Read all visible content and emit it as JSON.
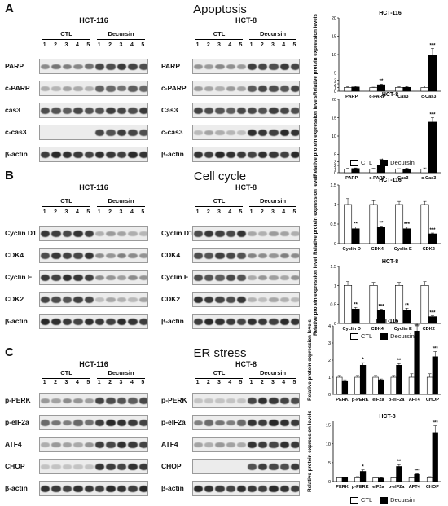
{
  "sections": [
    {
      "letter": "A",
      "title": "Apoptosis",
      "cells": [
        {
          "name": "HCT-116",
          "group_ctl": "CTL",
          "group_tx": "Decursin",
          "rows": [
            {
              "label": "PARP",
              "ctl": 0.45,
              "tx": 0.75
            },
            {
              "label": "c-PARP",
              "ctl": 0.2,
              "tx": 0.55
            },
            {
              "label": "cas3",
              "ctl": 0.7,
              "tx": 0.75
            },
            {
              "label": "c-cas3",
              "ctl": 0.0,
              "tx": 0.75
            },
            {
              "label": "β-actin",
              "ctl": 0.85,
              "tx": 0.85
            }
          ]
        },
        {
          "name": "HCT-8",
          "group_ctl": "CTL",
          "group_tx": "Decursin",
          "rows": [
            {
              "label": "PARP",
              "ctl": 0.35,
              "tx": 0.75
            },
            {
              "label": "c-PARP",
              "ctl": 0.25,
              "tx": 0.7
            },
            {
              "label": "Cas3",
              "ctl": 0.7,
              "tx": 0.75
            },
            {
              "label": "c-cas3",
              "ctl": 0.15,
              "tx": 0.85
            },
            {
              "label": "β-actin",
              "ctl": 0.85,
              "tx": 0.85
            }
          ]
        }
      ]
    },
    {
      "letter": "B",
      "title": "Cell cycle",
      "cells": [
        {
          "name": "HCT-116",
          "group_ctl": "CTL",
          "group_tx": "Decursin",
          "rows": [
            {
              "label": "Cyclin D1",
              "ctl": 0.8,
              "tx": 0.2
            },
            {
              "label": "CDK4",
              "ctl": 0.8,
              "tx": 0.35
            },
            {
              "label": "Cyclin E",
              "ctl": 0.85,
              "tx": 0.3
            },
            {
              "label": "CDK2",
              "ctl": 0.75,
              "tx": 0.15
            },
            {
              "label": "β-actin",
              "ctl": 0.85,
              "tx": 0.85
            }
          ]
        },
        {
          "name": "HCT-8",
          "group_ctl": "CTL",
          "group_tx": "Decursin",
          "rows": [
            {
              "label": "Cyclin D1",
              "ctl": 0.8,
              "tx": 0.2
            },
            {
              "label": "CDK4",
              "ctl": 0.75,
              "tx": 0.35
            },
            {
              "label": "Cyclin E",
              "ctl": 0.7,
              "tx": 0.25
            },
            {
              "label": "CDK2",
              "ctl": 0.8,
              "tx": 0.15
            },
            {
              "label": "β-actin",
              "ctl": 0.85,
              "tx": 0.85
            }
          ]
        }
      ]
    },
    {
      "letter": "C",
      "title": "ER stress",
      "cells": [
        {
          "name": "HCT-116",
          "group_ctl": "CTL",
          "group_tx": "Decursin",
          "rows": [
            {
              "label": "p-PERK",
              "ctl": 0.3,
              "tx": 0.7
            },
            {
              "label": "p-eIF2a",
              "ctl": 0.5,
              "tx": 0.85
            },
            {
              "label": "ATF4",
              "ctl": 0.25,
              "tx": 0.8
            },
            {
              "label": "CHOP",
              "ctl": 0.05,
              "tx": 0.8
            },
            {
              "label": "β-actin",
              "ctl": 0.85,
              "tx": 0.85
            }
          ]
        },
        {
          "name": "HCT-8",
          "group_ctl": "CTL",
          "group_tx": "Decursin",
          "rows": [
            {
              "label": "p-PERK",
              "ctl": 0.05,
              "tx": 0.8
            },
            {
              "label": "p-eIF2a",
              "ctl": 0.5,
              "tx": 0.85
            },
            {
              "label": "ATF4",
              "ctl": 0.25,
              "tx": 0.8
            },
            {
              "label": "CHOP",
              "ctl": 0.0,
              "tx": 0.75
            },
            {
              "label": "β-actin",
              "ctl": 0.85,
              "tx": 0.85
            }
          ]
        }
      ]
    }
  ],
  "lanes": [
    "1",
    "2",
    "3",
    "4",
    "5",
    "1",
    "2",
    "3",
    "4",
    "5"
  ],
  "legend": {
    "ctl": "CTL",
    "tx": "Decursin"
  },
  "colors": {
    "ctl_bar": "#ffffff",
    "tx_bar": "#000000",
    "band": "#1a1a1a",
    "blot_bg": "#ececec"
  },
  "chart_data": [
    {
      "type": "bar",
      "title": "HCT-116",
      "ylabel": "Relative protein expression levels",
      "categories": [
        "PARP",
        "c-PARP",
        "Cas3",
        "c-Cas3"
      ],
      "series": [
        {
          "name": "CTL",
          "values": [
            1.0,
            1.0,
            1.0,
            1.0
          ]
        },
        {
          "name": "Decursin",
          "values": [
            1.15,
            1.75,
            1.05,
            9.8
          ]
        }
      ],
      "errors": [
        [
          0.2,
          0.1,
          0.3,
          0.5
        ],
        [
          0.2,
          0.2,
          0.2,
          1.9
        ]
      ],
      "sig": [
        "",
        "**",
        "",
        "***"
      ],
      "yticks": [
        0,
        1,
        2,
        3,
        5,
        10,
        15,
        20
      ],
      "ylim": [
        0,
        20
      ]
    },
    {
      "type": "bar",
      "title": "HCT-8",
      "ylabel": "Relative protein expression levels",
      "categories": [
        "PARP",
        "c-PARP",
        "Cas3",
        "c-Cas3"
      ],
      "series": [
        {
          "name": "CTL",
          "values": [
            1.0,
            1.0,
            1.0,
            1.0
          ]
        },
        {
          "name": "Decursin",
          "values": [
            1.15,
            2.1,
            1.05,
            13.8
          ]
        }
      ],
      "errors": [
        [
          0.2,
          0.2,
          0.1,
          0.3
        ],
        [
          0.15,
          0.4,
          0.2,
          1.2
        ]
      ],
      "sig": [
        "",
        "**",
        "",
        "***"
      ],
      "yticks": [
        0,
        1,
        2,
        3,
        5,
        10,
        15,
        20
      ],
      "ylim": [
        0,
        20
      ]
    },
    {
      "type": "bar",
      "title": "HCT-116",
      "ylabel": "Relative protein expression levels",
      "categories": [
        "Cyclin D",
        "CDK4",
        "Cyclin E",
        "CDK2"
      ],
      "series": [
        {
          "name": "CTL",
          "values": [
            1.0,
            1.0,
            1.0,
            1.0
          ]
        },
        {
          "name": "Decursin",
          "values": [
            0.38,
            0.42,
            0.38,
            0.25
          ]
        }
      ],
      "errors": [
        [
          0.15,
          0.1,
          0.08,
          0.08
        ],
        [
          0.05,
          0.03,
          0.04,
          0.02
        ]
      ],
      "sig": [
        "**",
        "**",
        "***",
        "***"
      ],
      "yticks": [
        0.0,
        0.5,
        1.0,
        1.5
      ],
      "ylim": [
        0,
        1.5
      ]
    },
    {
      "type": "bar",
      "title": "HCT-8",
      "ylabel": "Relative protein expression levels",
      "categories": [
        "Cyclin D",
        "CDK4",
        "Cyclin E",
        "CDK2"
      ],
      "series": [
        {
          "name": "CTL",
          "values": [
            1.0,
            1.0,
            1.0,
            1.0
          ]
        },
        {
          "name": "Decursin",
          "values": [
            0.38,
            0.35,
            0.35,
            0.18
          ]
        }
      ],
      "errors": [
        [
          0.1,
          0.08,
          0.08,
          0.1
        ],
        [
          0.04,
          0.03,
          0.05,
          0.02
        ]
      ],
      "sig": [
        "**",
        "***",
        "**",
        "***"
      ],
      "yticks": [
        0.0,
        0.5,
        1.0,
        1.5
      ],
      "ylim": [
        0,
        1.5
      ]
    },
    {
      "type": "bar",
      "title": "HCT-116",
      "ylabel": "Relative protein expression levels",
      "categories": [
        "PERK",
        "p-PERK",
        "eIF2a",
        "p-eIF2a",
        "AFT4",
        "CHOP"
      ],
      "series": [
        {
          "name": "CTL",
          "values": [
            1.0,
            1.0,
            1.0,
            1.0,
            1.0,
            1.0
          ]
        },
        {
          "name": "Decursin",
          "values": [
            0.8,
            1.7,
            0.85,
            1.7,
            3.7,
            2.2
          ]
        }
      ],
      "errors": [
        [
          0.1,
          0.1,
          0.1,
          0.1,
          0.2,
          0.2
        ],
        [
          0.05,
          0.15,
          0.05,
          0.1,
          0.3,
          0.3
        ]
      ],
      "sig": [
        "",
        "*",
        "",
        "**",
        "***",
        "***"
      ],
      "yticks": [
        0,
        1,
        2,
        3,
        4
      ],
      "ylim": [
        0,
        4
      ]
    },
    {
      "type": "bar",
      "title": "HCT-8",
      "ylabel": "Relative protein expression levels",
      "categories": [
        "PERK",
        "p-PERK",
        "eIF2a",
        "p-eIF2a",
        "AFT4",
        "CHOP"
      ],
      "series": [
        {
          "name": "CTL",
          "values": [
            1.0,
            1.0,
            1.0,
            1.0,
            1.0,
            1.0
          ]
        },
        {
          "name": "Decursin",
          "values": [
            1.1,
            2.7,
            0.9,
            4.0,
            1.9,
            13.0
          ]
        }
      ],
      "errors": [
        [
          0.1,
          0.3,
          0.1,
          0.2,
          0.1,
          0.3
        ],
        [
          0.1,
          0.4,
          0.1,
          0.5,
          0.2,
          1.8
        ]
      ],
      "sig": [
        "",
        "*",
        "",
        "**",
        "***",
        "***"
      ],
      "yticks": [
        0,
        5,
        10,
        15
      ],
      "ylim": [
        0,
        16
      ]
    }
  ]
}
